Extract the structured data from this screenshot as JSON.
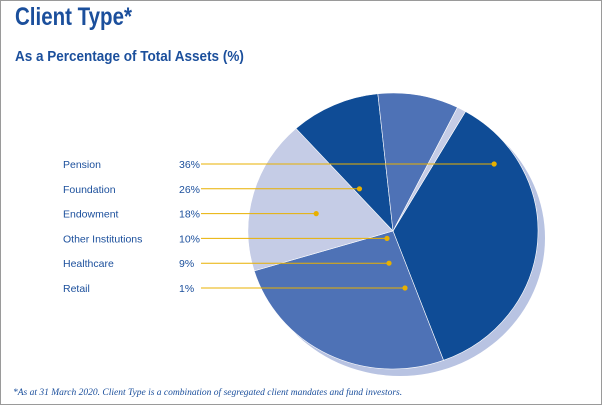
{
  "title": "Client Type*",
  "subtitle": "As a Percentage of Total Assets (%)",
  "footnote": "*As at 31 March 2020. Client Type is a combination of segregated client mandates and fund investors.",
  "colors": {
    "text": "#1b4f9c",
    "leader": "#e8b000",
    "shadow": "#b8c3e2"
  },
  "chart_data": {
    "type": "pie",
    "categories": [
      "Pension",
      "Foundation",
      "Endowment",
      "Other Institutions",
      "Healthcare",
      "Retail"
    ],
    "values": [
      36,
      26,
      18,
      10,
      9,
      1
    ],
    "value_labels": [
      "36%",
      "26%",
      "18%",
      "10%",
      "9%",
      "1%"
    ],
    "slice_colors": [
      "#0f4c96",
      "#4e72b6",
      "#c5cce6",
      "#0f4c96",
      "#4e72b6",
      "#c5cce6"
    ],
    "legend": "left"
  }
}
